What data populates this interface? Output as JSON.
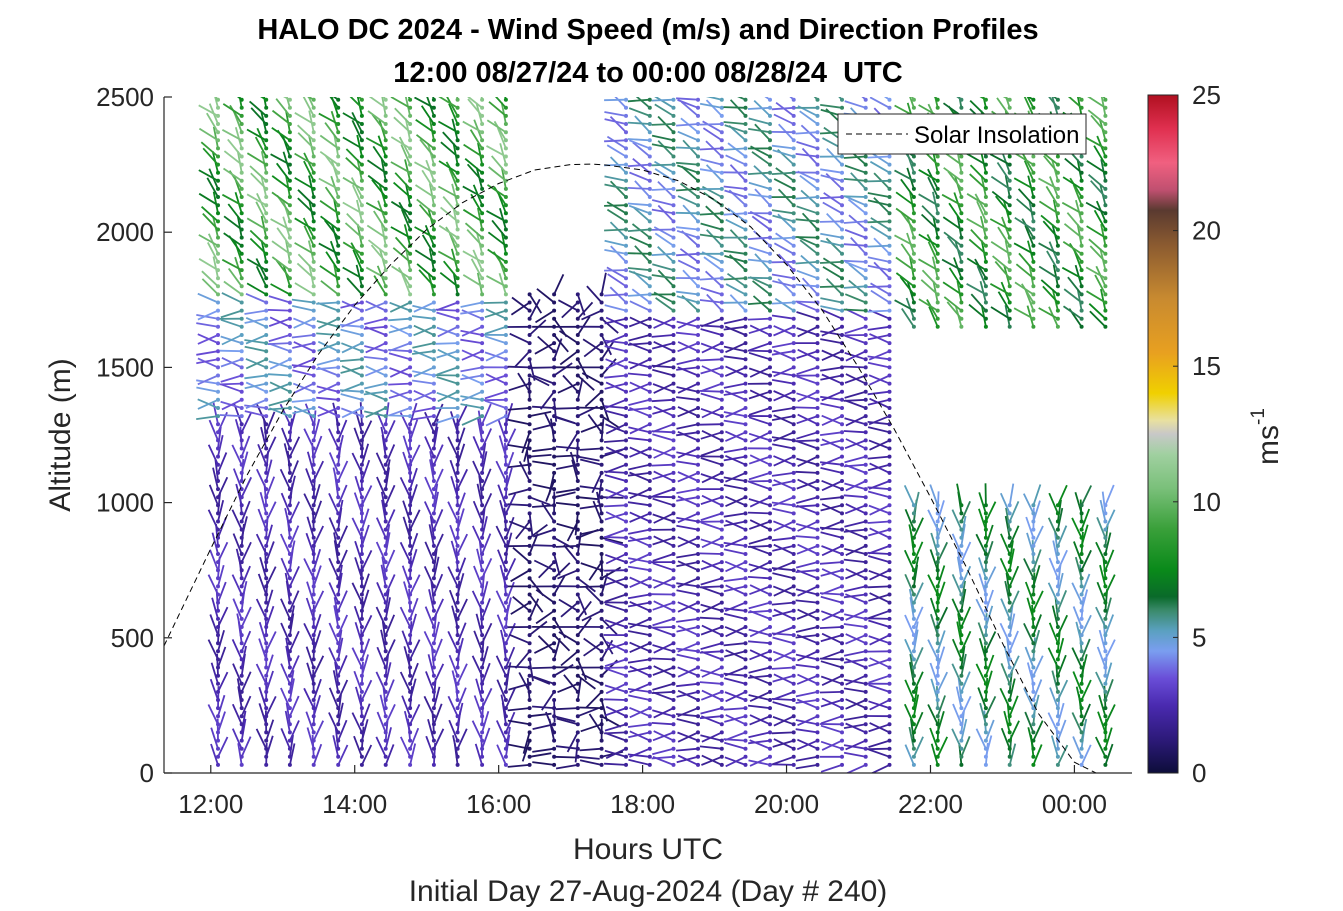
{
  "chart_data": {
    "type": "wind_barb_profile",
    "title": "HALO DC 2024 - Wind Speed (m/s) and Direction Profiles",
    "subtitle": "12:00 08/27/24 to 00:00 08/28/24  UTC",
    "xlabel": "Hours UTC",
    "xlabel2": "Initial Day 27-Aug-2024 (Day # 240)",
    "ylabel": "Altitude (m)",
    "xlim": [
      11.35,
      24.8
    ],
    "ylim": [
      0,
      2500
    ],
    "x_ticks": [
      12,
      14,
      16,
      18,
      20,
      22,
      24
    ],
    "x_tick_labels": [
      "12:00",
      "14:00",
      "16:00",
      "18:00",
      "20:00",
      "22:00",
      "00:00"
    ],
    "y_ticks": [
      0,
      500,
      1000,
      1500,
      2000,
      2500
    ],
    "y_tick_labels": [
      "0",
      "500",
      "1000",
      "1500",
      "2000",
      "2500"
    ],
    "colorbar": {
      "label": "ms",
      "label_superscript": "-1",
      "range": [
        0,
        25
      ],
      "ticks": [
        0,
        5,
        10,
        15,
        20,
        25
      ],
      "tick_labels": [
        "0",
        "5",
        "10",
        "15",
        "20",
        "25"
      ],
      "stops": [
        [
          0.0,
          "#0d0d3a"
        ],
        [
          0.05,
          "#2d1a7a"
        ],
        [
          0.1,
          "#4a2ab0"
        ],
        [
          0.14,
          "#6a4ed8"
        ],
        [
          0.18,
          "#7a9ef0"
        ],
        [
          0.21,
          "#5aa0c0"
        ],
        [
          0.24,
          "#3a8a6a"
        ],
        [
          0.26,
          "#0a6a2a"
        ],
        [
          0.3,
          "#0a8a1a"
        ],
        [
          0.36,
          "#3aa03a"
        ],
        [
          0.42,
          "#7ac07a"
        ],
        [
          0.47,
          "#a0d0a0"
        ],
        [
          0.5,
          "#c8c8c8"
        ],
        [
          0.52,
          "#e8e0a0"
        ],
        [
          0.56,
          "#f0d000"
        ],
        [
          0.62,
          "#e8a020"
        ],
        [
          0.7,
          "#c88a30"
        ],
        [
          0.78,
          "#8a5a30"
        ],
        [
          0.83,
          "#5a3a30"
        ],
        [
          0.86,
          "#c05070"
        ],
        [
          0.9,
          "#f06080"
        ],
        [
          0.95,
          "#e03050"
        ],
        [
          1.0,
          "#b01020"
        ]
      ]
    },
    "legend": {
      "entries": [
        "Solar Insolation"
      ],
      "placement": "top-right",
      "style": "black dashed line"
    },
    "series": [
      {
        "name": "Solar Insolation",
        "type": "line",
        "style": "dashed",
        "color": "#000000",
        "x": [
          11.35,
          12.0,
          12.5,
          13.0,
          13.5,
          14.0,
          14.5,
          15.0,
          15.5,
          16.0,
          16.5,
          17.0,
          17.3,
          17.5,
          18.0,
          18.5,
          19.0,
          19.5,
          20.0,
          20.5,
          21.0,
          21.5,
          22.0,
          22.5,
          23.0,
          23.5,
          24.0,
          24.3,
          24.8
        ],
        "y": [
          470,
          830,
          1100,
          1340,
          1550,
          1730,
          1880,
          2010,
          2110,
          2180,
          2230,
          2250,
          2252,
          2248,
          2230,
          2190,
          2120,
          2020,
          1880,
          1710,
          1500,
          1270,
          1020,
          760,
          480,
          220,
          40,
          0,
          0
        ]
      }
    ],
    "wind_barbs": {
      "profile_times_h": [
        12.1,
        12.43,
        12.77,
        13.1,
        13.43,
        13.77,
        14.1,
        14.43,
        14.77,
        15.1,
        15.43,
        15.77,
        16.1,
        16.43,
        16.77,
        17.1,
        17.43,
        17.77,
        18.1,
        18.43,
        18.77,
        19.1,
        19.43,
        19.77,
        20.1,
        20.43,
        20.77,
        21.1,
        21.43,
        21.77,
        22.1,
        22.43,
        22.77,
        23.1,
        23.43,
        23.77,
        24.1,
        24.43
      ],
      "altitude_step_m": 30,
      "max_altitude_m": 2500,
      "regimes": [
        {
          "time_range_h": [
            12,
            16.3
          ],
          "altitude_range_m": [
            1750,
            2500
          ],
          "speed_ms": 9,
          "direction": "northwest"
        },
        {
          "time_range_h": [
            12,
            16.3
          ],
          "altitude_range_m": [
            1300,
            1750
          ],
          "speed_ms": 4.5,
          "direction": "west"
        },
        {
          "time_range_h": [
            12,
            16.3
          ],
          "altitude_range_m": [
            0,
            1300
          ],
          "speed_ms": 2.5,
          "direction": "north"
        },
        {
          "time_range_h": [
            16.3,
            17.5
          ],
          "altitude_range_m": [
            0,
            1800
          ],
          "speed_ms": 1,
          "direction": "variable"
        },
        {
          "time_range_h": [
            17.5,
            21.5
          ],
          "altitude_range_m": [
            1700,
            2500
          ],
          "speed_ms": 5,
          "direction": "west-northwest"
        },
        {
          "time_range_h": [
            17.5,
            21.5
          ],
          "altitude_range_m": [
            0,
            1700
          ],
          "speed_ms": 2.5,
          "direction": "west"
        },
        {
          "time_range_h": [
            21.5,
            24.5
          ],
          "altitude_range_m": [
            1650,
            2500
          ],
          "speed_ms": 8,
          "direction": "northwest"
        },
        {
          "time_range_h": [
            21.5,
            24.5
          ],
          "altitude_range_m": [
            0,
            1000
          ],
          "speed_ms": 6,
          "direction": "north"
        }
      ]
    }
  }
}
